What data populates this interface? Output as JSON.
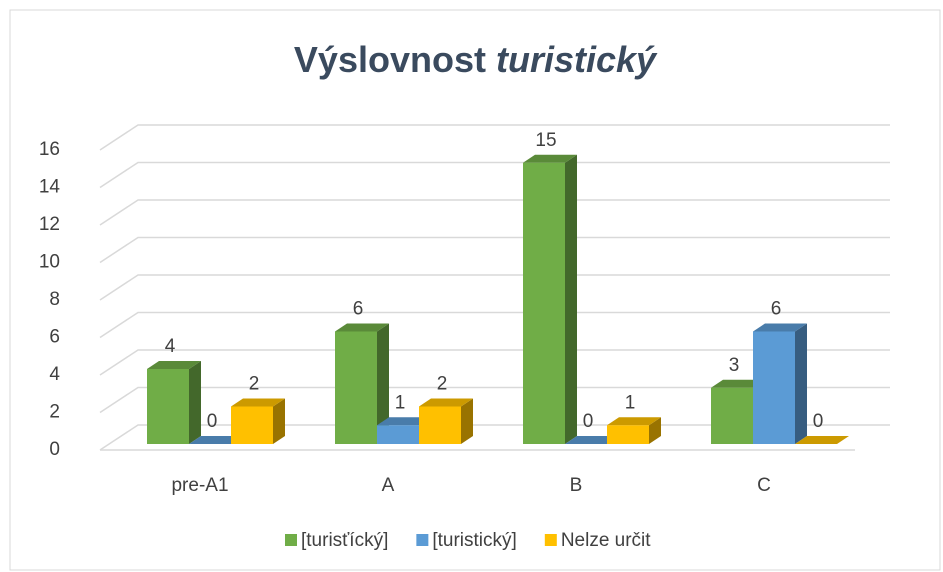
{
  "chart_data": {
    "type": "bar3d",
    "title": [
      "Výslovnost",
      "turistický"
    ],
    "categories": [
      "pre-A1",
      "A",
      "B",
      "C"
    ],
    "series": [
      {
        "name": "[turisťícký]",
        "color": "#70ad47",
        "values": [
          4,
          6,
          15,
          3
        ]
      },
      {
        "name": "[turistický]",
        "color": "#5b9bd5",
        "values": [
          0,
          1,
          0,
          6
        ]
      },
      {
        "name": "Nelze určit",
        "color": "#ffc000",
        "values": [
          2,
          2,
          1,
          0
        ]
      }
    ],
    "ylim": [
      0,
      16
    ],
    "yticks": [
      0,
      2,
      4,
      6,
      8,
      10,
      12,
      14,
      16
    ],
    "grid": true,
    "legend": "bottom",
    "data_labels": true
  }
}
